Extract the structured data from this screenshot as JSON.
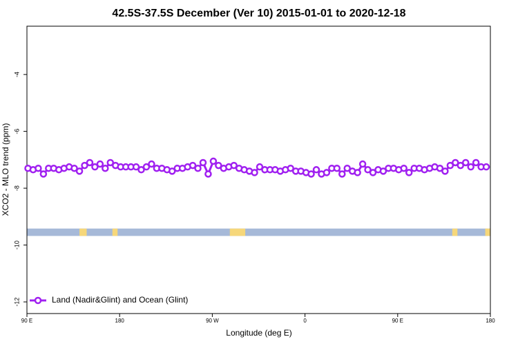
{
  "chart_data": {
    "type": "line",
    "title": "42.5S-37.5S December (Ver 10)   2015-01-01 to 2020-12-18",
    "x_label": "Longitude (deg E)",
    "y_label": "XCO2 - MLO trend (ppm)",
    "x": [
      91,
      96,
      101,
      106,
      111,
      116,
      121,
      126,
      131,
      136,
      141,
      146,
      151,
      156,
      161,
      166,
      171,
      176,
      181,
      186,
      191,
      196,
      201,
      206,
      211,
      216,
      221,
      226,
      231,
      236,
      241,
      246,
      251,
      256,
      261,
      266,
      271,
      276,
      281,
      286,
      291,
      296,
      301,
      306,
      311,
      316,
      321,
      326,
      331,
      336,
      341,
      346,
      351,
      356,
      361,
      366,
      371,
      376,
      381,
      386,
      391,
      396,
      401,
      406,
      411,
      416,
      421,
      426,
      431,
      436,
      441,
      446,
      451,
      456,
      461,
      466,
      471,
      476,
      481,
      486,
      491,
      496,
      501,
      506,
      511,
      516,
      521,
      526,
      531,
      536
    ],
    "series": [
      {
        "name": "Land (Nadir&Glint) and Ocean (Glint)",
        "color": "#a020f0",
        "values": [
          -7.3,
          -7.35,
          -7.3,
          -7.5,
          -7.3,
          -7.3,
          -7.35,
          -7.3,
          -7.25,
          -7.3,
          -7.4,
          -7.2,
          -7.1,
          -7.25,
          -7.15,
          -7.3,
          -7.1,
          -7.2,
          -7.25,
          -7.25,
          -7.25,
          -7.25,
          -7.35,
          -7.25,
          -7.15,
          -7.3,
          -7.3,
          -7.35,
          -7.4,
          -7.3,
          -7.3,
          -7.25,
          -7.2,
          -7.3,
          -7.1,
          -7.5,
          -7.05,
          -7.2,
          -7.3,
          -7.25,
          -7.2,
          -7.3,
          -7.35,
          -7.4,
          -7.45,
          -7.25,
          -7.35,
          -7.35,
          -7.35,
          -7.4,
          -7.35,
          -7.3,
          -7.4,
          -7.4,
          -7.45,
          -7.5,
          -7.35,
          -7.5,
          -7.45,
          -7.3,
          -7.3,
          -7.5,
          -7.3,
          -7.4,
          -7.45,
          -7.15,
          -7.35,
          -7.45,
          -7.35,
          -7.4,
          -7.3,
          -7.3,
          -7.35,
          -7.3,
          -7.45,
          -7.3,
          -7.3,
          -7.35,
          -7.3,
          -7.25,
          -7.3,
          -7.4,
          -7.2,
          -7.1,
          -7.2,
          -7.1,
          -7.25,
          -7.1,
          -7.25,
          -7.25
        ]
      }
    ],
    "xlim": [
      90,
      540
    ],
    "ylim": [
      -12.41,
      -2.3
    ],
    "xticks": [
      {
        "value": 90,
        "label": "90 E"
      },
      180,
      {
        "value": 270,
        "label": "90 W"
      },
      {
        "value": 360,
        "label": "0"
      },
      {
        "value": 450,
        "label": "90 E"
      },
      {
        "value": 540,
        "label": "180"
      }
    ],
    "yticks": [
      -4,
      -6,
      -8,
      -10,
      -12
    ],
    "legend": "bottom-left",
    "surface_strip": {
      "y_range": [
        -9.68,
        -9.42
      ],
      "ocean_color": "#a6b9d8",
      "land_color": "#f6d77a",
      "land_segments": [
        [
          141,
          148
        ],
        [
          173,
          178
        ],
        [
          287,
          302
        ],
        [
          503,
          508
        ],
        [
          535,
          540
        ]
      ]
    }
  }
}
